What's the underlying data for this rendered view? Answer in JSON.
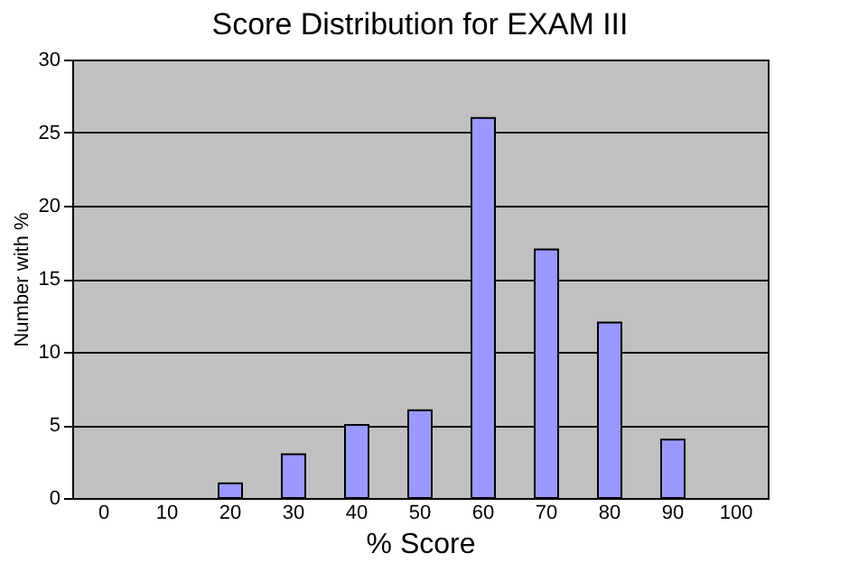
{
  "chart_data": {
    "type": "bar",
    "title": "Score Distribution for EXAM III",
    "xlabel": "% Score",
    "ylabel": "Number with %",
    "categories": [
      "0",
      "10",
      "20",
      "30",
      "40",
      "50",
      "60",
      "70",
      "80",
      "90",
      "100"
    ],
    "values": [
      0,
      0,
      1,
      3,
      5,
      6,
      26,
      17,
      12,
      4,
      0
    ],
    "color": "#9999ff",
    "ylim": [
      0,
      30
    ],
    "yticks": [
      0,
      5,
      10,
      15,
      20,
      25,
      30
    ],
    "grid": "y"
  }
}
